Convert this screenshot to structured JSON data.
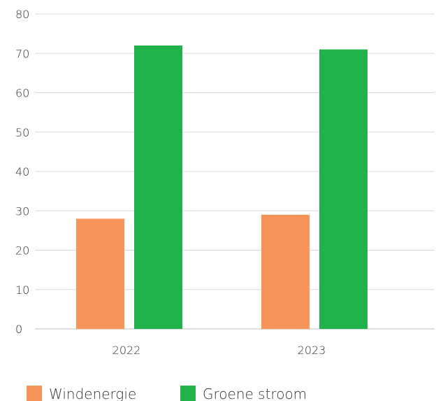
{
  "chart_data": {
    "type": "bar",
    "categories": [
      "2022",
      "2023"
    ],
    "series": [
      {
        "name": "Windenergie",
        "values": [
          28,
          29
        ],
        "color": "#f79459"
      },
      {
        "name": "Groene stroom",
        "values": [
          72,
          71
        ],
        "color": "#21b24b"
      }
    ],
    "ylim": [
      0,
      80
    ],
    "yticks": [
      "0",
      "10",
      "20",
      "30",
      "40",
      "50",
      "60",
      "70",
      "80"
    ],
    "grid": true,
    "legend": "bottom-left"
  }
}
